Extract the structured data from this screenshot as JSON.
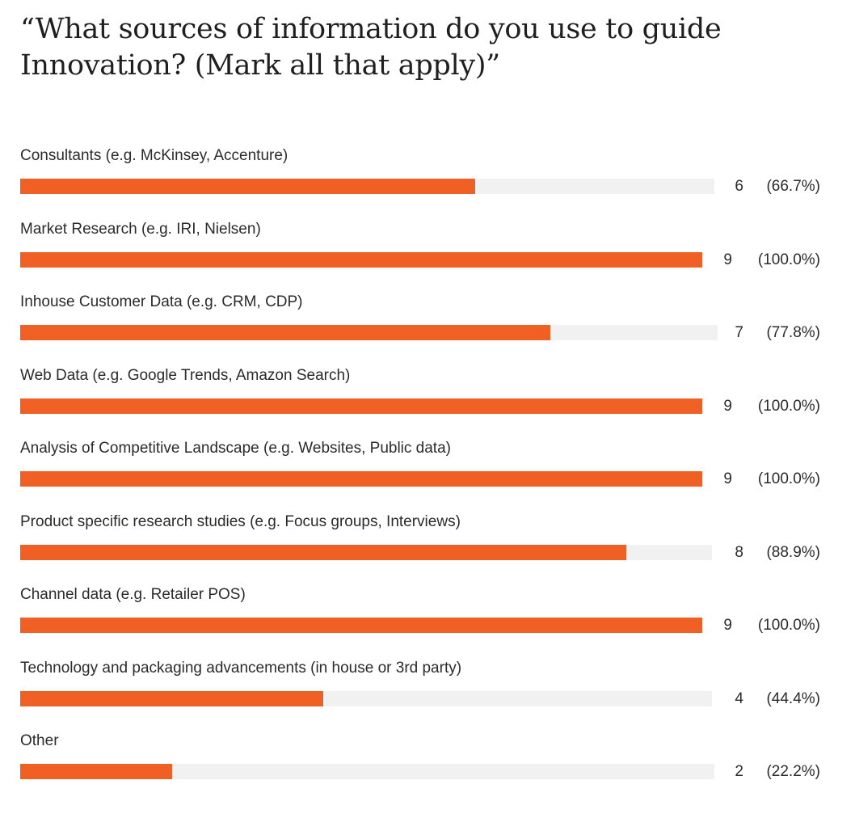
{
  "title": "“What sources of information do you use to guide Innovation? (Mark all that apply)”",
  "colors": {
    "bar_fill": "#f05f23",
    "bar_track": "#f1f1f1"
  },
  "chart_data": {
    "type": "bar",
    "orientation": "horizontal",
    "title": "“What sources of information do you use to guide Innovation? (Mark all that apply)”",
    "xlim": [
      0,
      9
    ],
    "categories": [
      "Consultants (e.g. McKinsey, Accenture)",
      "Market Research (e.g. IRI, Nielsen)",
      "Inhouse Customer Data (e.g. CRM, CDP)",
      "Web Data (e.g. Google Trends, Amazon Search)",
      "Analysis of Competitive Landscape (e.g. Websites, Public data)",
      "Product specific research studies (e.g. Focus groups, Interviews)",
      "Channel data (e.g. Retailer POS)",
      "Technology and packaging advancements (in house or 3rd party)",
      "Other"
    ],
    "values": [
      6,
      9,
      7,
      9,
      9,
      8,
      9,
      4,
      2
    ],
    "percent_labels": [
      "(66.7%)",
      "(100.0%)",
      "(77.8%)",
      "(100.0%)",
      "(100.0%)",
      "(88.9%)",
      "(100.0%)",
      "(44.4%)",
      "(22.2%)"
    ]
  }
}
